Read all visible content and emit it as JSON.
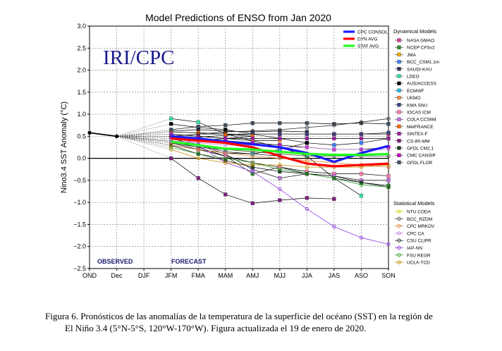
{
  "chart_data": {
    "type": "line",
    "title": "Model Predictions of ENSO from Jan 2020",
    "ylabel": "Nino3.4 SST Anomaly (°C)",
    "xlabel": "",
    "watermark": "IRI/CPC",
    "categories": [
      "OND",
      "Dec",
      "DJF",
      "JFM",
      "FMA",
      "MAM",
      "AMJ",
      "MJJ",
      "JJA",
      "JAS",
      "ASO",
      "SON"
    ],
    "ylim": [
      -2.5,
      3.0
    ],
    "yticks": [
      "3.0",
      "2.5",
      "2.0",
      "1.5",
      "1.0",
      "0.5",
      "0.0",
      "−0.5",
      "−1.0",
      "−1.5",
      "−2.0",
      "−2.5"
    ],
    "grid": true,
    "observed_label": "OBSERVED",
    "forecast_label": "FORECAST",
    "observed": [
      0.58,
      0.5
    ],
    "avg_series": [
      {
        "name": "CPC CONSOL",
        "color": "#1a1aff",
        "values": [
          null,
          0.5,
          null,
          0.5,
          0.45,
          0.38,
          0.32,
          0.25,
          0.12,
          -0.08,
          0.12,
          0.28
        ]
      },
      {
        "name": "DYN AVG",
        "color": "#ff0000",
        "values": [
          null,
          0.5,
          null,
          0.45,
          0.4,
          0.35,
          0.25,
          0.05,
          -0.12,
          -0.18,
          -0.15,
          -0.12
        ]
      },
      {
        "name": "STAT AVG",
        "color": "#22ff22",
        "values": [
          null,
          0.5,
          null,
          0.38,
          0.3,
          0.22,
          0.2,
          0.15,
          0.1,
          0.08,
          0.08,
          0.1
        ]
      }
    ],
    "dynamical_legend_title": "Dynamical Models",
    "dynamical_models": [
      {
        "name": "NASA GMAO",
        "color": "#d04090",
        "values": [
          null,
          0.5,
          null,
          0.45,
          0.48,
          0.52,
          0.55,
          0.55,
          0.55,
          0.55,
          0.55,
          0.55
        ]
      },
      {
        "name": "NCEP CFSv2",
        "color": "#2a8a2a",
        "values": [
          null,
          0.5,
          null,
          0.38,
          0.25,
          0.05,
          -0.35,
          -0.2,
          -0.35,
          -0.4,
          -0.55,
          -0.62
        ]
      },
      {
        "name": "JMA",
        "color": "#e8b000",
        "values": [
          null,
          0.5,
          null,
          0.45,
          0.4,
          0.45,
          0.5,
          null,
          null,
          null,
          null,
          null
        ]
      },
      {
        "name": "BCC_CSM1.1m",
        "color": "#4080ff",
        "values": [
          null,
          0.5,
          null,
          0.3,
          0.2,
          0.12,
          0.1,
          0.2,
          0.35,
          0.3,
          0.35,
          0.45
        ]
      },
      {
        "name": "SAUDI-KAU",
        "color": "#303050",
        "values": [
          null,
          0.5,
          null,
          0.62,
          0.65,
          0.62,
          0.6,
          0.62,
          0.6,
          null,
          null,
          null
        ]
      },
      {
        "name": "LDEO",
        "color": "#30e0a0",
        "values": [
          null,
          0.5,
          null,
          0.9,
          0.82,
          0.55,
          0.4,
          0.25,
          0.05,
          -0.45,
          -0.85,
          null
        ]
      },
      {
        "name": "AUS/ACCESS",
        "color": "#000000",
        "values": [
          null,
          0.5,
          null,
          0.78,
          0.7,
          0.65,
          0.55,
          0.45,
          0.35,
          null,
          null,
          null
        ]
      },
      {
        "name": "ECMWF",
        "color": "#20b8e8",
        "values": [
          null,
          0.5,
          null,
          0.4,
          0.3,
          0.15,
          0.1,
          0.05,
          null,
          null,
          null,
          null
        ]
      },
      {
        "name": "UKMO",
        "color": "#ff8c40",
        "values": [
          null,
          0.5,
          null,
          0.55,
          0.5,
          0.45,
          0.4,
          0.4,
          null,
          null,
          null,
          null
        ]
      },
      {
        "name": "KMA SNU",
        "color": "#404080",
        "values": [
          null,
          0.5,
          null,
          0.5,
          0.55,
          0.55,
          0.55,
          0.55,
          0.55,
          0.55,
          0.55,
          0.58
        ]
      },
      {
        "name": "IOCAS ICM",
        "color": "#ff7ab0",
        "values": [
          null,
          0.5,
          null,
          0.35,
          0.2,
          0.05,
          -0.1,
          -0.2,
          -0.3,
          -0.35,
          -0.35,
          -0.4
        ]
      },
      {
        "name": "COLA CCSM4",
        "color": "#c070e0",
        "values": [
          null,
          0.5,
          null,
          0.45,
          0.3,
          0.1,
          -0.25,
          -0.45,
          -0.35,
          -0.4,
          -0.5,
          -0.5
        ]
      },
      {
        "name": "MetFRANCE",
        "color": "#ff6a00",
        "values": [
          null,
          0.5,
          null,
          0.6,
          0.58,
          0.55,
          0.5,
          null,
          null,
          null,
          null,
          null
        ]
      },
      {
        "name": "SINTEX-F",
        "color": "#a020a0",
        "values": [
          null,
          0.5,
          null,
          0.55,
          0.5,
          0.45,
          0.45,
          0.45,
          0.45,
          0.45,
          0.45,
          0.45
        ]
      },
      {
        "name": "CS-IRI-MM",
        "color": "#802080",
        "values": [
          null,
          0.5,
          null,
          0.0,
          -0.45,
          -0.82,
          -1.02,
          -0.95,
          -0.9,
          -0.92,
          null,
          null
        ]
      },
      {
        "name": "GFDL CM2.1",
        "color": "#204020",
        "values": [
          null,
          0.5,
          null,
          0.3,
          0.1,
          -0.05,
          -0.2,
          -0.3,
          -0.35,
          -0.45,
          -0.55,
          -0.65
        ]
      },
      {
        "name": "CMC CANSIP",
        "color": "#c000c0",
        "values": [
          null,
          0.5,
          null,
          0.5,
          0.45,
          0.4,
          0.35,
          0.3,
          0.25,
          0.2,
          0.2,
          0.25
        ]
      },
      {
        "name": "GFDL FLOR",
        "color": "#405060",
        "values": [
          null,
          0.5,
          null,
          0.65,
          0.72,
          0.75,
          0.8,
          0.8,
          0.8,
          0.78,
          0.8,
          0.78
        ]
      }
    ],
    "statistical_legend_title": "Statistical Models",
    "statistical_models": [
      {
        "name": "NTU CODA",
        "color": "#c8d000",
        "values": [
          null,
          0.5,
          null,
          0.4,
          0.3,
          0.2,
          0.15,
          0.1,
          0.05,
          null,
          null,
          null
        ]
      },
      {
        "name": "BCC_RZDM",
        "color": "#505050",
        "values": [
          null,
          0.5,
          null,
          0.35,
          0.25,
          0.2,
          0.15,
          0.1,
          0.05,
          0.05,
          0.05,
          0.05
        ]
      },
      {
        "name": "CPC MRKOV",
        "color": "#e08030",
        "values": [
          null,
          0.5,
          null,
          0.3,
          0.2,
          0.12,
          0.05,
          0.0,
          -0.05,
          -0.1,
          -0.15,
          -0.2
        ]
      },
      {
        "name": "CPC CA",
        "color": "#c080e0",
        "values": [
          null,
          0.5,
          null,
          0.4,
          0.35,
          0.3,
          0.3,
          0.25,
          0.25,
          0.2,
          0.2,
          0.2
        ]
      },
      {
        "name": "CSU CLIPR",
        "color": "#303030",
        "values": [
          null,
          0.5,
          null,
          0.5,
          0.55,
          0.6,
          0.62,
          0.65,
          0.7,
          0.75,
          0.82,
          0.9
        ]
      },
      {
        "name": "IAP-NN",
        "color": "#9040e0",
        "values": [
          null,
          0.5,
          null,
          0.55,
          0.3,
          -0.1,
          -0.3,
          -0.7,
          -1.15,
          -1.55,
          -1.8,
          -1.95
        ]
      },
      {
        "name": "FSU REGR",
        "color": "#30a030",
        "values": [
          null,
          0.5,
          null,
          0.25,
          0.1,
          0.0,
          -0.1,
          -0.25,
          -0.35,
          -0.45,
          -0.6,
          -0.65
        ]
      },
      {
        "name": "UCLA-TCD",
        "color": "#c09000",
        "values": [
          null,
          0.5,
          null,
          0.2,
          0.0,
          -0.1,
          -0.15,
          -0.15,
          -0.2,
          -0.2,
          -0.2,
          -0.15
        ]
      }
    ]
  },
  "caption": {
    "line1": "Figura 6. Pronósticos de las anomalías de la temperatura de la superficie del océano (SST) en la región de",
    "line2": "El Niño 3.4 (5°N-5°S, 120°W-170°W). Figura actualizada el 19 de enero de 2020."
  }
}
